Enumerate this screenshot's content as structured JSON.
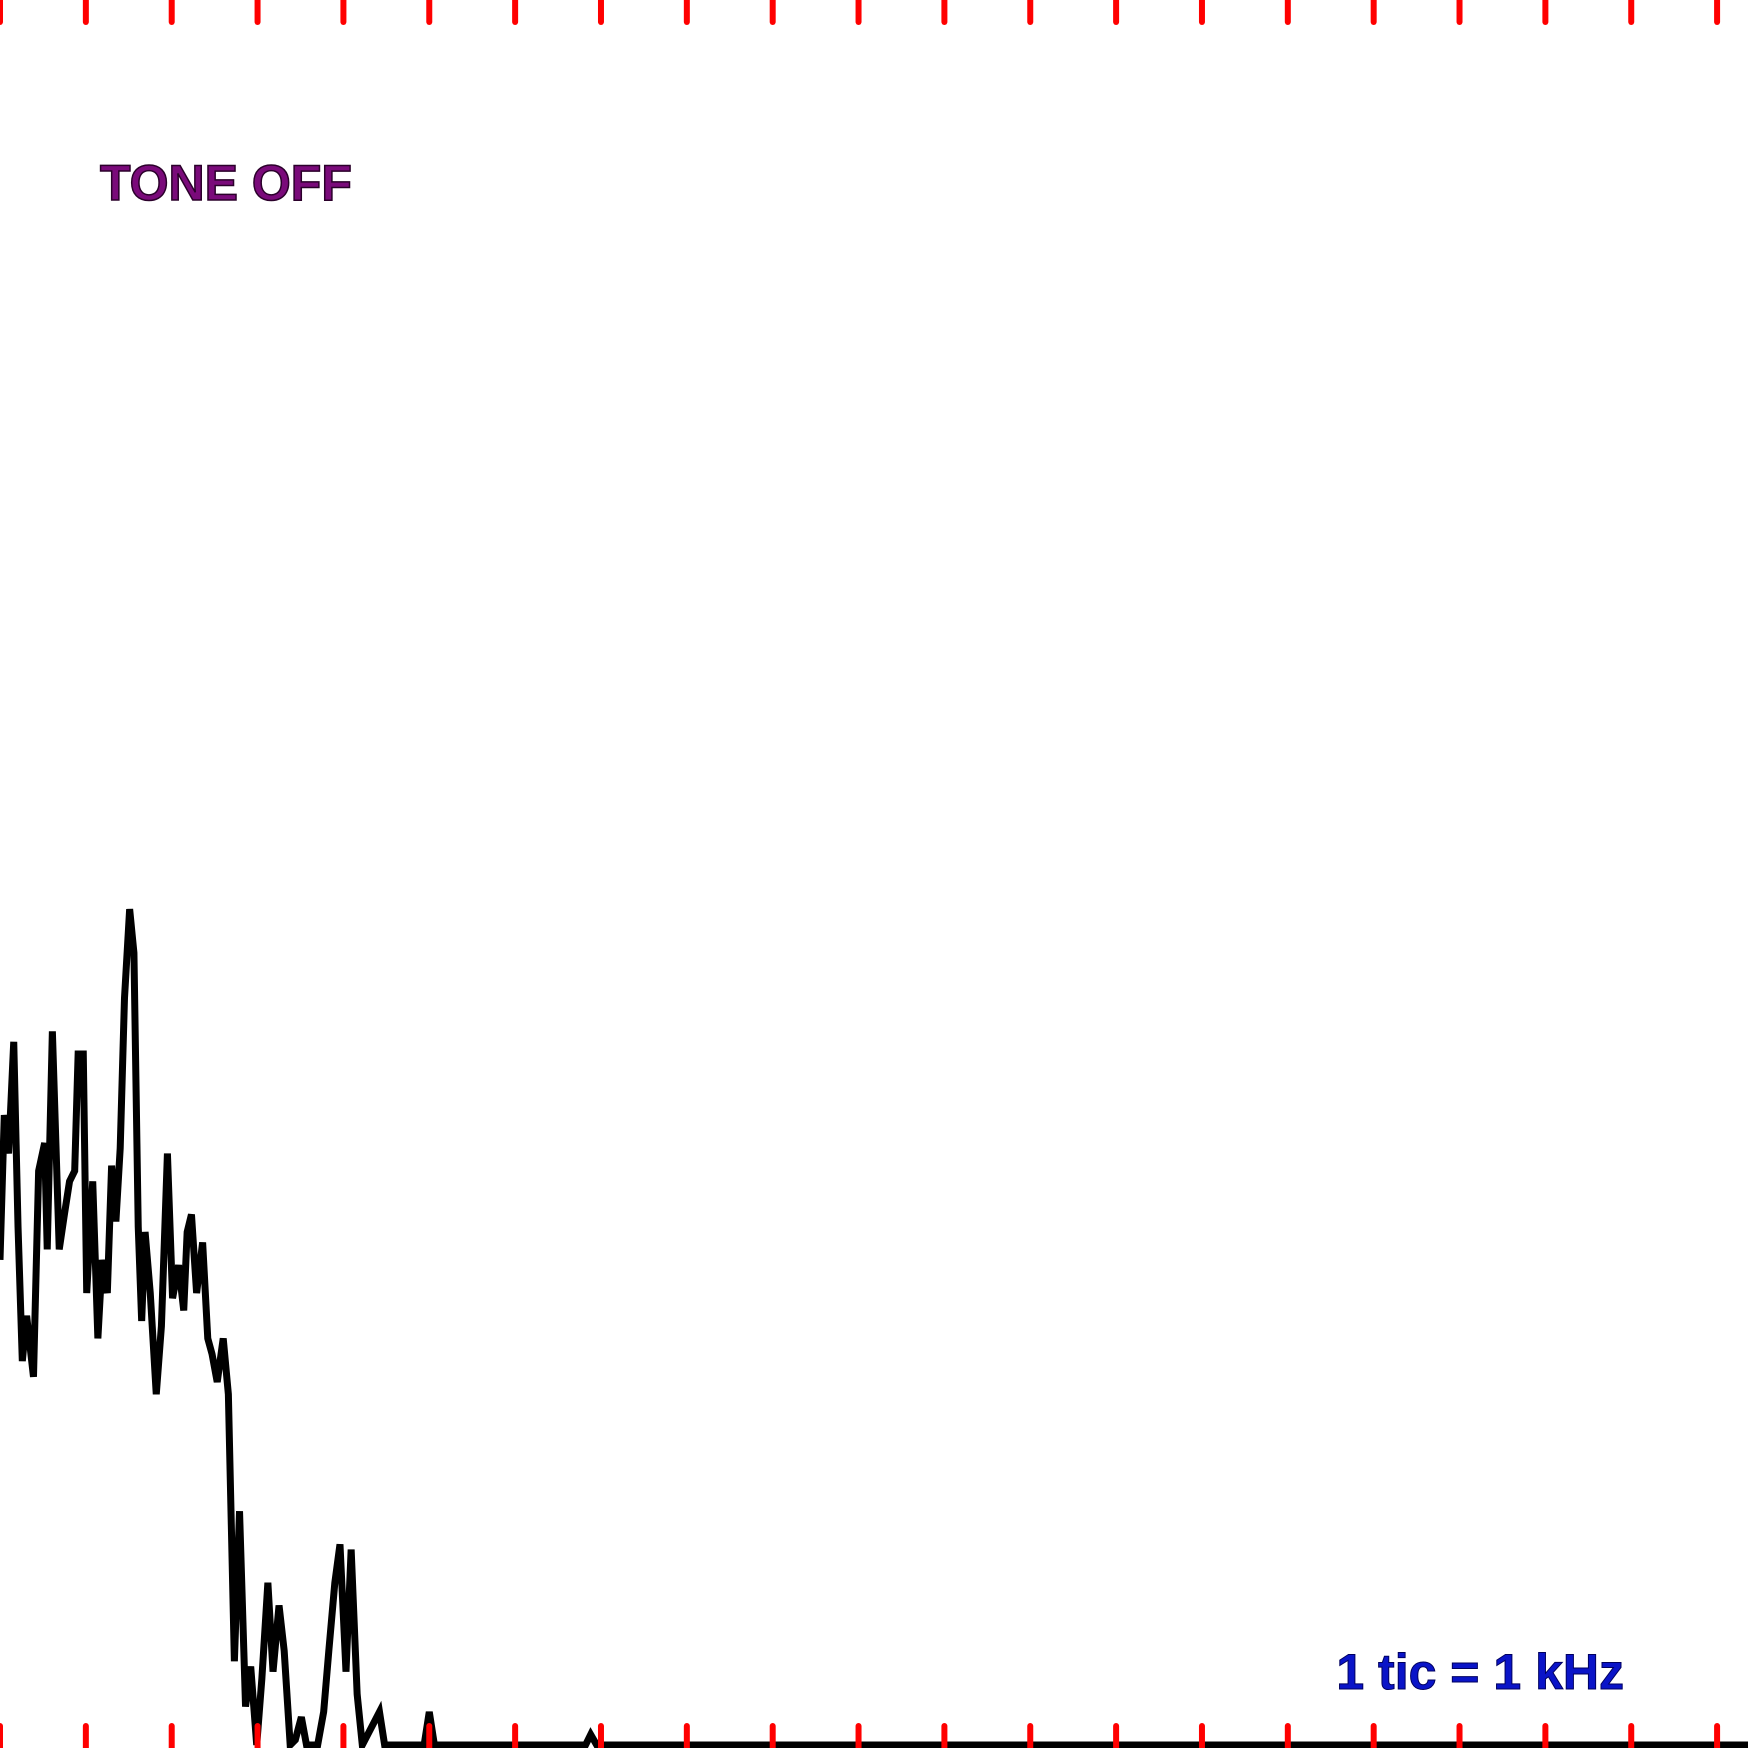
{
  "chart_data": {
    "type": "line",
    "status": "TONE OFF",
    "scale_note": "1 tic = 1 kHz",
    "x": [
      0,
      0.05,
      0.1,
      0.16,
      0.21,
      0.26,
      0.31,
      0.39,
      0.45,
      0.52,
      0.55,
      0.61,
      0.69,
      0.75,
      0.81,
      0.87,
      0.91,
      0.97,
      1.01,
      1.08,
      1.14,
      1.19,
      1.25,
      1.3,
      1.35,
      1.4,
      1.45,
      1.51,
      1.56,
      1.61,
      1.65,
      1.69,
      1.75,
      1.82,
      1.88,
      1.95,
      2.01,
      2.08,
      2.14,
      2.18,
      2.23,
      2.29,
      2.36,
      2.42,
      2.47,
      2.53,
      2.6,
      2.66,
      2.73,
      2.79,
      2.86,
      2.92,
      2.99,
      3.05,
      3.12,
      3.18,
      3.25,
      3.31,
      3.38,
      3.44,
      3.51,
      3.57,
      3.7,
      3.77,
      3.83,
      3.9,
      3.96,
      4.03,
      4.09,
      4.16,
      4.22,
      4.42,
      4.48,
      4.94,
      5,
      5.06,
      6.82,
      6.88,
      6.95,
      20.36
    ],
    "values": [
      27.8,
      36.1,
      33.9,
      40.3,
      29.7,
      22.0,
      24.6,
      21.1,
      32.9,
      34.5,
      28.4,
      40.9,
      28.4,
      30.4,
      32.3,
      32.9,
      39.6,
      39.6,
      25.9,
      32.3,
      23.3,
      27.8,
      25.9,
      33.2,
      30.0,
      34.2,
      42.8,
      47.9,
      45.4,
      29.7,
      24.3,
      29.4,
      25.9,
      20.1,
      24.0,
      33.9,
      25.6,
      27.5,
      24.9,
      29.4,
      30.4,
      25.9,
      28.8,
      23.3,
      22.4,
      20.8,
      23.3,
      20.1,
      4.8,
      13.4,
      2.2,
      4.5,
      0,
      3.8,
      9.3,
      4.2,
      8.0,
      5.4,
      0,
      0.3,
      1.6,
      0,
      0,
      1.9,
      5.4,
      9.3,
      11.5,
      4.2,
      11.2,
      2.9,
      0,
      1.9,
      0,
      0,
      1.9,
      0,
      0,
      0.6,
      0,
      0
    ],
    "color": "#000000",
    "tick_color": "#ff0000",
    "xlim": [
      0,
      20.36
    ],
    "ylim": [
      0,
      100
    ],
    "xticks": [
      0,
      1,
      2,
      3,
      4,
      5,
      6,
      7,
      8,
      9,
      10,
      11,
      12,
      13,
      14,
      15,
      16,
      17,
      18,
      19,
      20
    ]
  }
}
